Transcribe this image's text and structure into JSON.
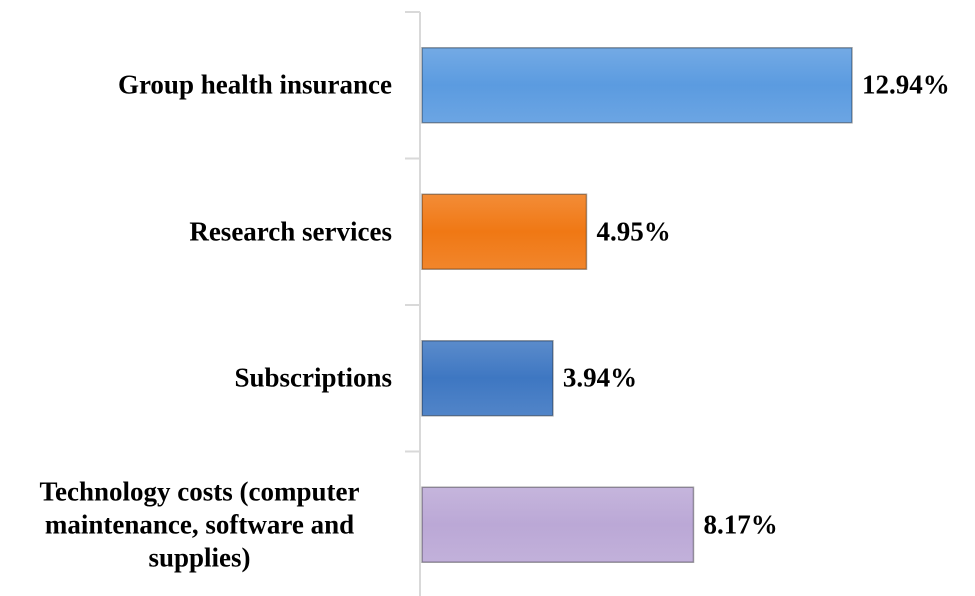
{
  "chart_data": {
    "type": "bar",
    "orientation": "horizontal",
    "categories": [
      "Group health insurance",
      "Research services",
      "Subscriptions",
      "Technology costs (computer maintenance, software and supplies)"
    ],
    "values": [
      12.94,
      4.95,
      3.94,
      8.17
    ],
    "value_labels": [
      "12.94%",
      "4.95%",
      "3.94%",
      "8.17%"
    ],
    "colors": [
      "#5b9be0",
      "#f07814",
      "#3e77c2",
      "#bba8d6"
    ]
  }
}
